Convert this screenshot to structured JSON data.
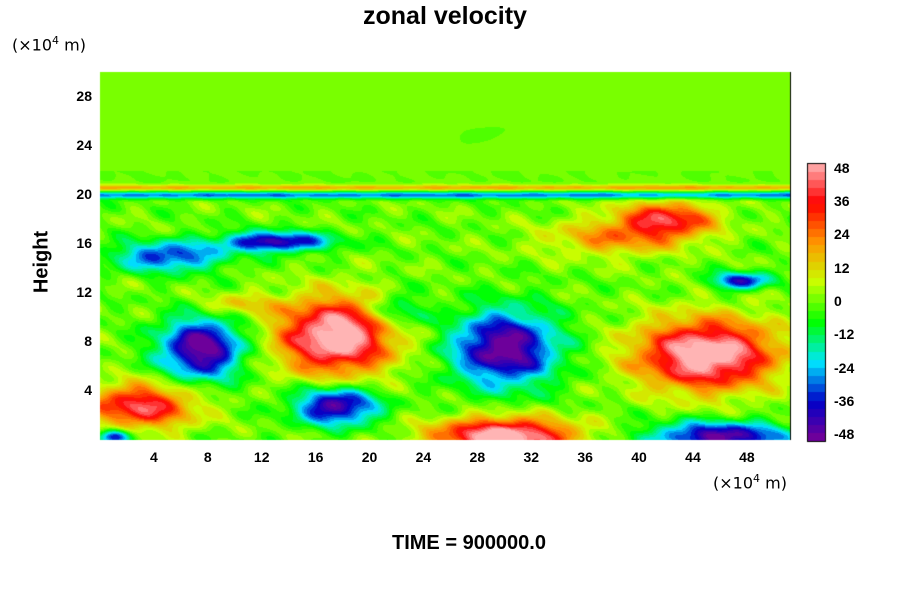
{
  "chart_data": {
    "type": "heatmap",
    "title": "zonal velocity",
    "ylabel": "Height",
    "y_unit_label": {
      "pre": "(×10",
      "exp": "4",
      "post": " m)"
    },
    "x_unit_label": {
      "pre": "(×10",
      "exp": "4",
      "post": " m)"
    },
    "xlim": [
      0,
      51.2
    ],
    "ylim": [
      0,
      30
    ],
    "x_ticks": [
      "4",
      "8",
      "12",
      "16",
      "20",
      "24",
      "28",
      "32",
      "36",
      "40",
      "44",
      "48"
    ],
    "y_ticks": [
      "4",
      "8",
      "12",
      "16",
      "20",
      "24",
      "28"
    ],
    "colorbar": {
      "range": [
        -50,
        50
      ],
      "ticks": [
        "48",
        "36",
        "24",
        "12",
        "0",
        "-12",
        "-24",
        "-36",
        "-48"
      ],
      "colormap": [
        "#7a0096",
        "#0000c8",
        "#00e6ff",
        "#00ff00",
        "#c8ff00",
        "#ff9600",
        "#ff0000",
        "#ffb4b4"
      ]
    },
    "features": [
      {
        "x": 7.5,
        "y": 7.5,
        "sx": 3.0,
        "sy": 2.5,
        "value": -52
      },
      {
        "x": 17.5,
        "y": 8.5,
        "sx": 4.2,
        "sy": 3.0,
        "value": 58
      },
      {
        "x": 30.0,
        "y": 7.5,
        "sx": 3.8,
        "sy": 3.0,
        "value": -52
      },
      {
        "x": 45.0,
        "y": 7.0,
        "sx": 5.0,
        "sy": 2.8,
        "value": 58
      },
      {
        "x": 3.0,
        "y": 2.8,
        "sx": 4.0,
        "sy": 1.8,
        "value": 42
      },
      {
        "x": 17.5,
        "y": 2.8,
        "sx": 3.0,
        "sy": 1.5,
        "value": -48
      },
      {
        "x": 30.0,
        "y": 0.3,
        "sx": 5.0,
        "sy": 1.5,
        "value": 58
      },
      {
        "x": 46.0,
        "y": 0.3,
        "sx": 5.0,
        "sy": 1.2,
        "value": -48
      },
      {
        "x": 1.0,
        "y": 0.3,
        "sx": 1.2,
        "sy": 0.6,
        "value": -45
      },
      {
        "x": 13.0,
        "y": 16.2,
        "sx": 4.0,
        "sy": 0.8,
        "value": -45
      },
      {
        "x": 5.0,
        "y": 15.0,
        "sx": 4.0,
        "sy": 1.2,
        "value": -35
      },
      {
        "x": 42.0,
        "y": 18.0,
        "sx": 3.5,
        "sy": 1.5,
        "value": 38
      },
      {
        "x": 47.5,
        "y": 13.0,
        "sx": 2.0,
        "sy": 0.7,
        "value": -40
      },
      {
        "x": 38.0,
        "y": 16.5,
        "sx": 5.0,
        "sy": 1.5,
        "value": 20
      },
      {
        "x": 22.0,
        "y": 10.5,
        "sx": 2.0,
        "sy": 1.5,
        "value": -20
      },
      {
        "x": 10.0,
        "y": 11.0,
        "sx": 3.0,
        "sy": 1.0,
        "value": 15
      }
    ],
    "bands": [
      {
        "y": 20.6,
        "sy": 0.25,
        "value": 18
      },
      {
        "y": 20.0,
        "sy": 0.3,
        "value": -28
      }
    ]
  },
  "footer": {
    "time_label": "TIME = 900000.0"
  }
}
